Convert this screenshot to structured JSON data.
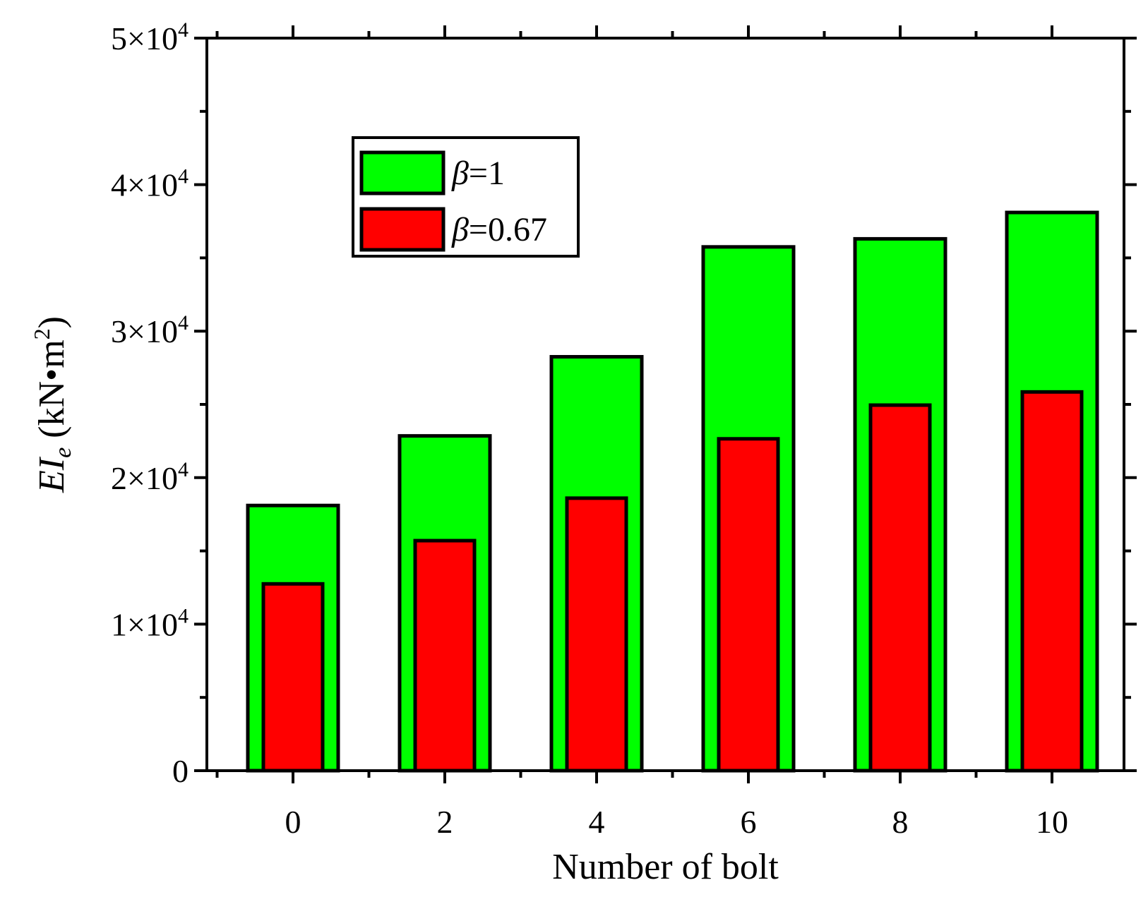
{
  "chart_data": {
    "type": "bar",
    "categories": [
      "0",
      "2",
      "4",
      "6",
      "8",
      "10"
    ],
    "series": [
      {
        "name": "β=1",
        "legend_symbol": "β",
        "legend_value": "=1",
        "values": [
          18100,
          22850,
          28250,
          35750,
          36300,
          38100
        ],
        "color": "#00ff00"
      },
      {
        "name": "β=0.67",
        "legend_symbol": "β",
        "legend_value": "=0.67",
        "values": [
          12750,
          15700,
          18600,
          22650,
          24950,
          25850
        ],
        "color": "#ff0000"
      }
    ],
    "xlabel": "Number of bolt",
    "ylabel": {
      "italic": "EI",
      "sub": "e",
      "units": " (kN•m",
      "sup": "2",
      "close": ")"
    },
    "ylim": [
      0,
      50000
    ],
    "yticks": [
      {
        "value": 0,
        "mant": "0",
        "exp": ""
      },
      {
        "value": 10000,
        "mant": "1×10",
        "exp": "4"
      },
      {
        "value": 20000,
        "mant": "2×10",
        "exp": "4"
      },
      {
        "value": 30000,
        "mant": "3×10",
        "exp": "4"
      },
      {
        "value": 40000,
        "mant": "4×10",
        "exp": "4"
      },
      {
        "value": 50000,
        "mant": "5×10",
        "exp": "4"
      }
    ],
    "grid": false,
    "legend_position": "top-left"
  }
}
